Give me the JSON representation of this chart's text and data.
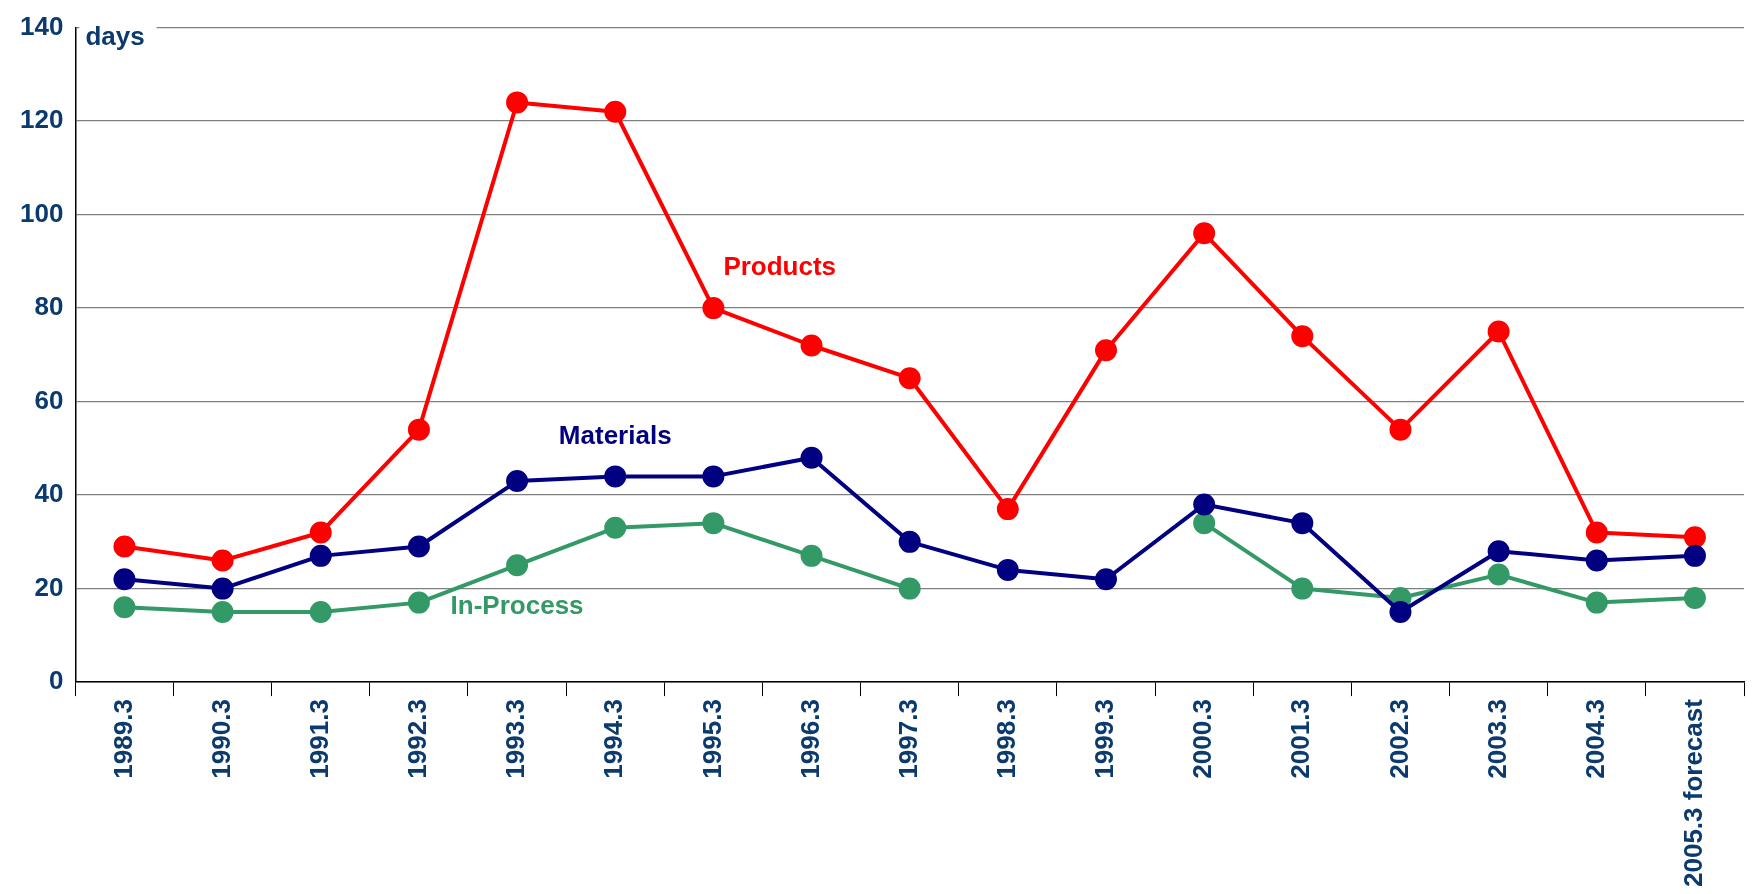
{
  "chart_data": {
    "type": "line",
    "ylabel": "days",
    "categories": [
      "1989.3",
      "1990.3",
      "1991.3",
      "1992.3",
      "1993.3",
      "1994.3",
      "1995.3",
      "1996.3",
      "1997.3",
      "1998.3",
      "1999.3",
      "2000.3",
      "2001.3",
      "2002.3",
      "2003.3",
      "2004.3",
      "2005.3 forecast"
    ],
    "series": [
      {
        "name": "Products",
        "color": "#ff0000",
        "values": [
          29,
          26,
          32,
          54,
          124,
          122,
          80,
          72,
          65,
          37,
          71,
          96,
          74,
          54,
          75,
          32,
          31
        ]
      },
      {
        "name": "Materials",
        "color": "#000080",
        "values": [
          22,
          20,
          27,
          29,
          43,
          44,
          44,
          48,
          30,
          24,
          22,
          38,
          34,
          15,
          28,
          26,
          27
        ]
      },
      {
        "name": "In-Process",
        "color": "#339966",
        "values": [
          16,
          15,
          15,
          17,
          25,
          33,
          34,
          27,
          20,
          null,
          null,
          34,
          20,
          18,
          23,
          17,
          18
        ]
      }
    ],
    "ylim": [
      0,
      140
    ],
    "yticks": [
      0,
      20,
      40,
      60,
      80,
      100,
      120,
      140
    ],
    "grid": "y",
    "legend": false,
    "marker": "circle",
    "line_style": "solid"
  }
}
